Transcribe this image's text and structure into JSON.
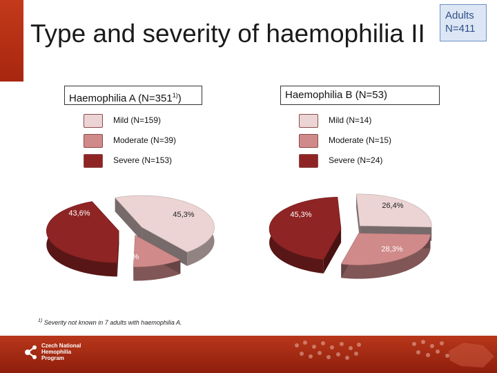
{
  "title": "Type and severity of haemophilia II",
  "adults_box": {
    "line1": "Adults",
    "line2": "N=411"
  },
  "footnote": {
    "marker": "1)",
    "text": " Severity not known in 7 adults with haemophilia A."
  },
  "logo": {
    "line1": "Czech National",
    "line2": "Hemophilia",
    "line3": "Program"
  },
  "colors": {
    "mild": "#ecd4d4",
    "moderate": "#d08a8a",
    "severe": "#8f2424",
    "footer": "#a8260f",
    "accent_box": "#dde6f4"
  },
  "chart_data": [
    {
      "type": "pie",
      "title": "Haemophilia A (N=351",
      "title_sup": "1)",
      "title_end": ")",
      "legend": [
        {
          "label": "Mild (N=159)",
          "color": "#ecd4d4"
        },
        {
          "label": "Moderate (N=39)",
          "color": "#d08a8a"
        },
        {
          "label": "Severe (N=153)",
          "color": "#8f2424"
        }
      ],
      "slices": [
        {
          "label": "45,3%",
          "value": 45.3,
          "color": "#ecd4d4"
        },
        {
          "label": "11,1%",
          "value": 11.1,
          "color": "#d08a8a"
        },
        {
          "label": "43,6%",
          "value": 43.6,
          "color": "#8f2424"
        }
      ]
    },
    {
      "type": "pie",
      "title": "Haemophilia B (N=53)",
      "legend": [
        {
          "label": "Mild (N=14)",
          "color": "#ecd4d4"
        },
        {
          "label": "Moderate (N=15)",
          "color": "#d08a8a"
        },
        {
          "label": "Severe (N=24)",
          "color": "#8f2424"
        }
      ],
      "slices": [
        {
          "label": "26,4%",
          "value": 26.4,
          "color": "#ecd4d4"
        },
        {
          "label": "28,3%",
          "value": 28.3,
          "color": "#d08a8a"
        },
        {
          "label": "45,3%",
          "value": 45.3,
          "color": "#8f2424"
        }
      ]
    }
  ]
}
